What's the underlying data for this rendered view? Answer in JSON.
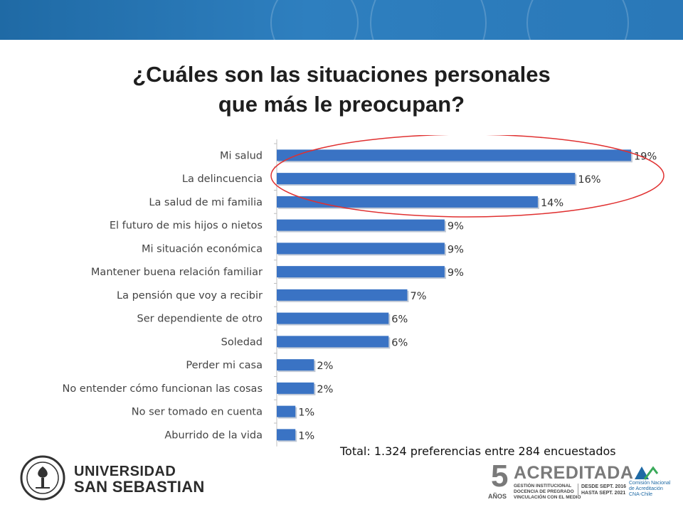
{
  "title_line1": "¿Cuáles son las situaciones personales",
  "title_line2": "que más le preocupan?",
  "total_note": "Total: 1.324 preferencias entre 284 encuestados",
  "university": {
    "line1": "UNIVERSIDAD",
    "line2": "SAN SEBASTIAN"
  },
  "accreditation": {
    "years_number": "5",
    "years_word": "AÑOS",
    "word": "ACREDITADA",
    "areas": [
      "GESTIÓN INSTITUCIONAL",
      "DOCENCIA DE PREGRADO",
      "VINCULACIÓN CON EL MEDIO"
    ],
    "dates": [
      "DESDE SEPT. 2016",
      "HASTA SEPT. 2021"
    ],
    "agency": [
      "Comisión Nacional",
      "de Acreditación",
      "CNA-Chile"
    ]
  },
  "colors": {
    "bar": "#3a73c4",
    "banner": "#2a78b8",
    "highlight_ellipse": "#e03030"
  },
  "chart_data": {
    "type": "bar",
    "orientation": "horizontal",
    "categories": [
      "Mi salud",
      "La delincuencia",
      "La salud de mi familia",
      "El futuro de mis hijos o nietos",
      "Mi situación económica",
      "Mantener buena relación familiar",
      "La pensión que voy a recibir",
      "Ser dependiente de otro",
      "Soledad",
      "Perder mi casa",
      "No entender cómo funcionan las cosas",
      "No ser tomado en cuenta",
      "Aburrido de la vida"
    ],
    "values": [
      19,
      16,
      14,
      9,
      9,
      9,
      7,
      6,
      6,
      2,
      2,
      1,
      1
    ],
    "value_unit": "%",
    "data_labels": [
      "19%",
      "16%",
      "14%",
      "9%",
      "9%",
      "9%",
      "7%",
      "6%",
      "6%",
      "2%",
      "2%",
      "1%",
      "1%"
    ],
    "highlighted_categories": [
      "Mi salud",
      "La delincuencia",
      "La salud de mi familia"
    ],
    "xlim": [
      0,
      19
    ],
    "grid": false,
    "legend": "none"
  }
}
